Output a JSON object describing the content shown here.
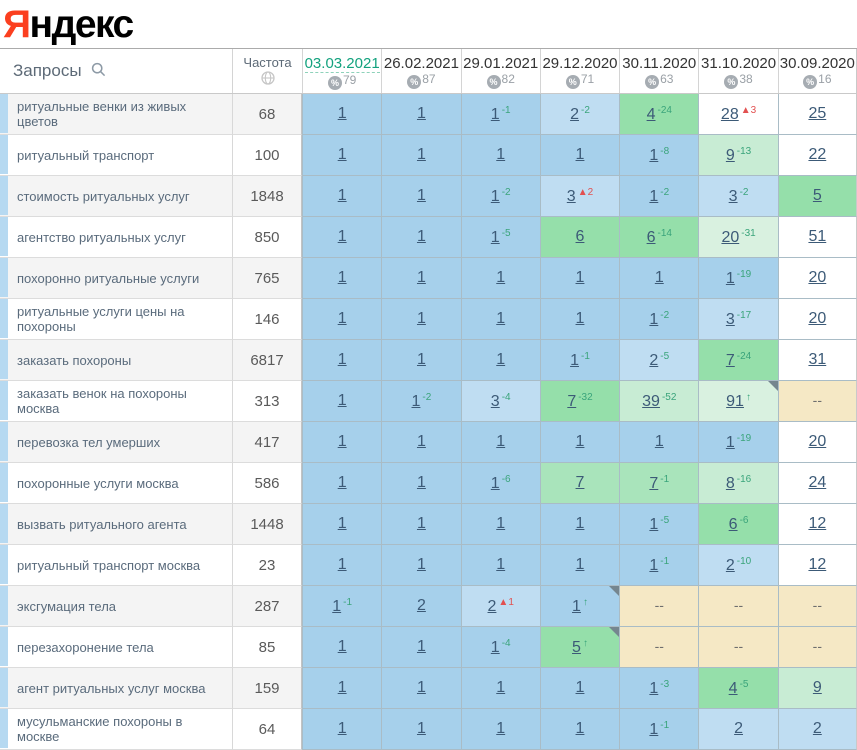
{
  "logo": {
    "first_letter": "Я",
    "rest": "ндекс"
  },
  "colors": {
    "brand_red": "#fb3f1f",
    "active_date_green": "#13a27e",
    "position_link": "#3c5a77",
    "change_up_green": "#3aa47b",
    "change_down_red": "#e25050",
    "cell_blue": "#a6d0eb",
    "cell_green": "#95dfaa",
    "cell_beige": "#f5e8c5"
  },
  "table": {
    "queries_header": "Запросы",
    "frequency_header": "Частота",
    "dates": [
      {
        "label": "03.03.2021",
        "percent": "79",
        "active": true
      },
      {
        "label": "26.02.2021",
        "percent": "87",
        "active": false
      },
      {
        "label": "29.01.2021",
        "percent": "82",
        "active": false
      },
      {
        "label": "29.12.2020",
        "percent": "71",
        "active": false
      },
      {
        "label": "30.11.2020",
        "percent": "63",
        "active": false
      },
      {
        "label": "31.10.2020",
        "percent": "38",
        "active": false
      },
      {
        "label": "30.09.2020",
        "percent": "16",
        "active": false
      }
    ],
    "rows": [
      {
        "keyword": "ритуальные венки из живых цветов",
        "frequency": "68",
        "cells": [
          {
            "pos": "1",
            "bg": "blue"
          },
          {
            "pos": "1",
            "bg": "blue"
          },
          {
            "pos": "1",
            "change": "-1",
            "trend": "up",
            "bg": "blue"
          },
          {
            "pos": "2",
            "change": "-2",
            "trend": "up",
            "bg": "blue-light"
          },
          {
            "pos": "4",
            "change": "-24",
            "trend": "up",
            "bg": "green"
          },
          {
            "pos": "28",
            "change": "▲3",
            "trend": "down",
            "bg": "white"
          },
          {
            "pos": "25",
            "bg": "white"
          }
        ]
      },
      {
        "keyword": "ритуальный транспорт",
        "frequency": "100",
        "cells": [
          {
            "pos": "1",
            "bg": "blue"
          },
          {
            "pos": "1",
            "bg": "blue"
          },
          {
            "pos": "1",
            "bg": "blue"
          },
          {
            "pos": "1",
            "bg": "blue"
          },
          {
            "pos": "1",
            "change": "-8",
            "trend": "up",
            "bg": "blue"
          },
          {
            "pos": "9",
            "change": "-13",
            "trend": "up",
            "bg": "green-pale"
          },
          {
            "pos": "22",
            "bg": "white"
          }
        ]
      },
      {
        "keyword": "стоимость ритуальных услуг",
        "frequency": "1848",
        "cells": [
          {
            "pos": "1",
            "bg": "blue"
          },
          {
            "pos": "1",
            "bg": "blue"
          },
          {
            "pos": "1",
            "change": "-2",
            "trend": "up",
            "bg": "blue"
          },
          {
            "pos": "3",
            "change": "▲2",
            "trend": "down",
            "bg": "blue-light"
          },
          {
            "pos": "1",
            "change": "-2",
            "trend": "up",
            "bg": "blue"
          },
          {
            "pos": "3",
            "change": "-2",
            "trend": "up",
            "bg": "blue-light"
          },
          {
            "pos": "5",
            "bg": "green"
          }
        ]
      },
      {
        "keyword": "агентство ритуальных услуг",
        "frequency": "850",
        "cells": [
          {
            "pos": "1",
            "bg": "blue"
          },
          {
            "pos": "1",
            "bg": "blue"
          },
          {
            "pos": "1",
            "change": "-5",
            "trend": "up",
            "bg": "blue"
          },
          {
            "pos": "6",
            "bg": "green"
          },
          {
            "pos": "6",
            "change": "-14",
            "trend": "up",
            "bg": "green"
          },
          {
            "pos": "20",
            "change": "-31",
            "trend": "up",
            "bg": "green-faint"
          },
          {
            "pos": "51",
            "bg": "white"
          }
        ]
      },
      {
        "keyword": "похоронно ритуальные услуги",
        "frequency": "765",
        "cells": [
          {
            "pos": "1",
            "bg": "blue"
          },
          {
            "pos": "1",
            "bg": "blue"
          },
          {
            "pos": "1",
            "bg": "blue"
          },
          {
            "pos": "1",
            "bg": "blue"
          },
          {
            "pos": "1",
            "bg": "blue"
          },
          {
            "pos": "1",
            "change": "-19",
            "trend": "up",
            "bg": "blue"
          },
          {
            "pos": "20",
            "bg": "white"
          }
        ]
      },
      {
        "keyword": "ритуальные услуги цены на похороны",
        "frequency": "146",
        "cells": [
          {
            "pos": "1",
            "bg": "blue"
          },
          {
            "pos": "1",
            "bg": "blue"
          },
          {
            "pos": "1",
            "bg": "blue"
          },
          {
            "pos": "1",
            "bg": "blue"
          },
          {
            "pos": "1",
            "change": "-2",
            "trend": "up",
            "bg": "blue"
          },
          {
            "pos": "3",
            "change": "-17",
            "trend": "up",
            "bg": "blue-light"
          },
          {
            "pos": "20",
            "bg": "white"
          }
        ]
      },
      {
        "keyword": "заказать похороны",
        "frequency": "6817",
        "cells": [
          {
            "pos": "1",
            "bg": "blue"
          },
          {
            "pos": "1",
            "bg": "blue"
          },
          {
            "pos": "1",
            "bg": "blue"
          },
          {
            "pos": "1",
            "change": "-1",
            "trend": "up",
            "bg": "blue"
          },
          {
            "pos": "2",
            "change": "-5",
            "trend": "up",
            "bg": "blue-light"
          },
          {
            "pos": "7",
            "change": "-24",
            "trend": "up",
            "bg": "green"
          },
          {
            "pos": "31",
            "bg": "white"
          }
        ]
      },
      {
        "keyword": "заказать венок на похороны москва",
        "frequency": "313",
        "cells": [
          {
            "pos": "1",
            "bg": "blue"
          },
          {
            "pos": "1",
            "change": "-2",
            "trend": "up",
            "bg": "blue"
          },
          {
            "pos": "3",
            "change": "-4",
            "trend": "up",
            "bg": "blue-light"
          },
          {
            "pos": "7",
            "change": "-32",
            "trend": "up",
            "bg": "green"
          },
          {
            "pos": "39",
            "change": "-52",
            "trend": "up",
            "bg": "green-pale"
          },
          {
            "pos": "91",
            "change": "↑",
            "trend": "up",
            "bg": "green-faint",
            "note": true
          },
          {
            "pos": "--",
            "bg": "beige",
            "empty": true
          }
        ]
      },
      {
        "keyword": "перевозка тел умерших",
        "frequency": "417",
        "cells": [
          {
            "pos": "1",
            "bg": "blue"
          },
          {
            "pos": "1",
            "bg": "blue"
          },
          {
            "pos": "1",
            "bg": "blue"
          },
          {
            "pos": "1",
            "bg": "blue"
          },
          {
            "pos": "1",
            "bg": "blue"
          },
          {
            "pos": "1",
            "change": "-19",
            "trend": "up",
            "bg": "blue"
          },
          {
            "pos": "20",
            "bg": "white"
          }
        ]
      },
      {
        "keyword": "похоронные услуги москва",
        "frequency": "586",
        "cells": [
          {
            "pos": "1",
            "bg": "blue"
          },
          {
            "pos": "1",
            "bg": "blue"
          },
          {
            "pos": "1",
            "change": "-6",
            "trend": "up",
            "bg": "blue"
          },
          {
            "pos": "7",
            "bg": "green-light"
          },
          {
            "pos": "7",
            "change": "-1",
            "trend": "up",
            "bg": "green-light"
          },
          {
            "pos": "8",
            "change": "-16",
            "trend": "up",
            "bg": "green-pale"
          },
          {
            "pos": "24",
            "bg": "white"
          }
        ]
      },
      {
        "keyword": "вызвать ритуального агента",
        "frequency": "1448",
        "cells": [
          {
            "pos": "1",
            "bg": "blue"
          },
          {
            "pos": "1",
            "bg": "blue"
          },
          {
            "pos": "1",
            "bg": "blue"
          },
          {
            "pos": "1",
            "bg": "blue"
          },
          {
            "pos": "1",
            "change": "-5",
            "trend": "up",
            "bg": "blue"
          },
          {
            "pos": "6",
            "change": "-6",
            "trend": "up",
            "bg": "green"
          },
          {
            "pos": "12",
            "bg": "white"
          }
        ]
      },
      {
        "keyword": "ритуальный транспорт москва",
        "frequency": "23",
        "cells": [
          {
            "pos": "1",
            "bg": "blue"
          },
          {
            "pos": "1",
            "bg": "blue"
          },
          {
            "pos": "1",
            "bg": "blue"
          },
          {
            "pos": "1",
            "bg": "blue"
          },
          {
            "pos": "1",
            "change": "-1",
            "trend": "up",
            "bg": "blue"
          },
          {
            "pos": "2",
            "change": "-10",
            "trend": "up",
            "bg": "blue-light"
          },
          {
            "pos": "12",
            "bg": "white"
          }
        ]
      },
      {
        "keyword": "эксгумация тела",
        "frequency": "287",
        "cells": [
          {
            "pos": "1",
            "change": "-1",
            "trend": "up",
            "bg": "blue"
          },
          {
            "pos": "2",
            "bg": "blue"
          },
          {
            "pos": "2",
            "change": "▲1",
            "trend": "down",
            "bg": "blue-light"
          },
          {
            "pos": "1",
            "change": "↑",
            "trend": "up",
            "bg": "blue",
            "note": true
          },
          {
            "pos": "--",
            "bg": "beige",
            "empty": true
          },
          {
            "pos": "--",
            "bg": "beige",
            "empty": true
          },
          {
            "pos": "--",
            "bg": "beige",
            "empty": true
          }
        ]
      },
      {
        "keyword": "перезахоронение тела",
        "frequency": "85",
        "cells": [
          {
            "pos": "1",
            "bg": "blue"
          },
          {
            "pos": "1",
            "bg": "blue"
          },
          {
            "pos": "1",
            "change": "-4",
            "trend": "up",
            "bg": "blue"
          },
          {
            "pos": "5",
            "change": "↑",
            "trend": "up",
            "bg": "green",
            "note": true
          },
          {
            "pos": "--",
            "bg": "beige",
            "empty": true
          },
          {
            "pos": "--",
            "bg": "beige",
            "empty": true
          },
          {
            "pos": "--",
            "bg": "beige",
            "empty": true
          }
        ]
      },
      {
        "keyword": "агент ритуальных услуг москва",
        "frequency": "159",
        "cells": [
          {
            "pos": "1",
            "bg": "blue"
          },
          {
            "pos": "1",
            "bg": "blue"
          },
          {
            "pos": "1",
            "bg": "blue"
          },
          {
            "pos": "1",
            "bg": "blue"
          },
          {
            "pos": "1",
            "change": "-3",
            "trend": "up",
            "bg": "blue"
          },
          {
            "pos": "4",
            "change": "-5",
            "trend": "up",
            "bg": "green"
          },
          {
            "pos": "9",
            "bg": "green-pale"
          }
        ]
      },
      {
        "keyword": "мусульманские похороны в москве",
        "frequency": "64",
        "cells": [
          {
            "pos": "1",
            "bg": "blue"
          },
          {
            "pos": "1",
            "bg": "blue"
          },
          {
            "pos": "1",
            "bg": "blue"
          },
          {
            "pos": "1",
            "bg": "blue"
          },
          {
            "pos": "1",
            "change": "-1",
            "trend": "up",
            "bg": "blue"
          },
          {
            "pos": "2",
            "bg": "blue-light"
          },
          {
            "pos": "2",
            "bg": "blue-light"
          }
        ]
      }
    ]
  }
}
